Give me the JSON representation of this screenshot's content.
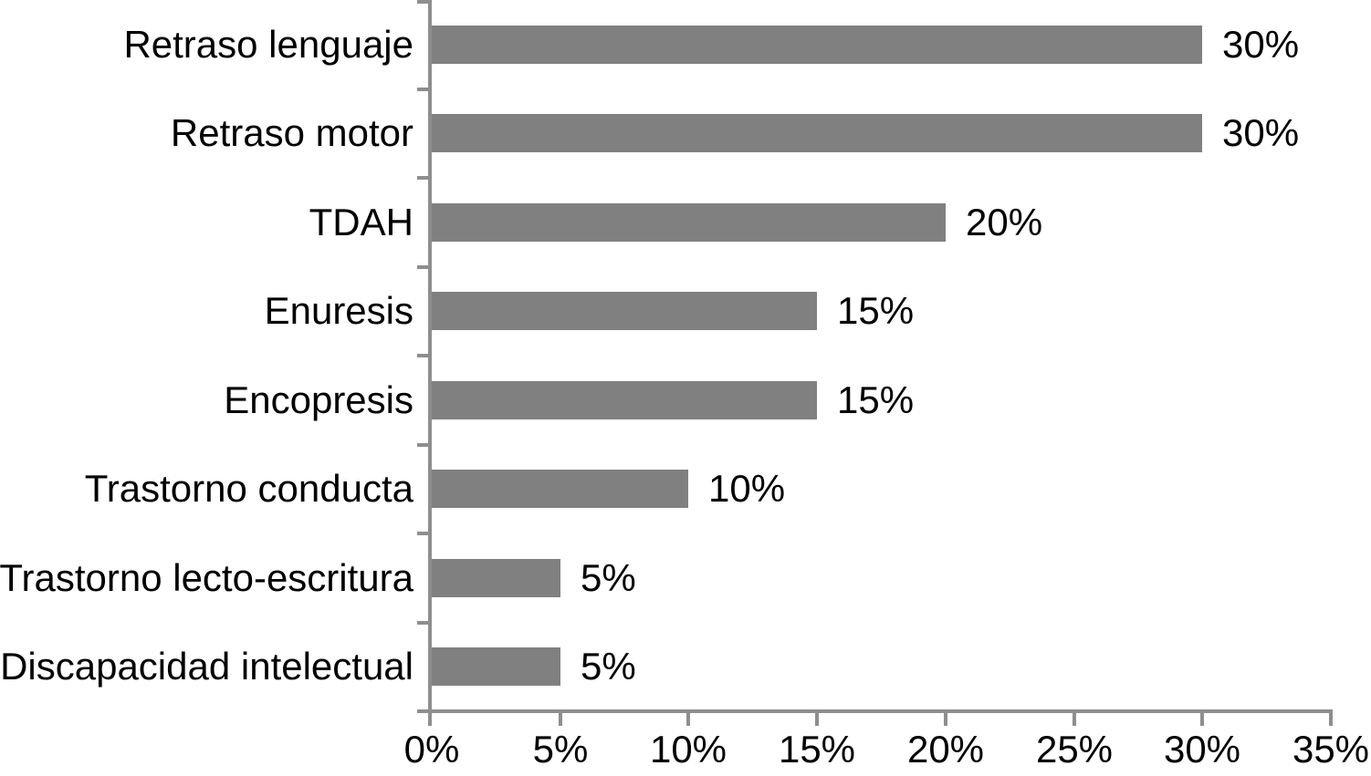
{
  "chart_data": {
    "type": "bar",
    "orientation": "horizontal",
    "title": "",
    "xlabel": "",
    "ylabel": "",
    "categories": [
      "Retraso lenguaje",
      "Retraso motor",
      "TDAH",
      "Enuresis",
      "Encopresis",
      "Trastorno conducta",
      "Trastorno lecto-escritura",
      "Discapacidad intelectual"
    ],
    "values": [
      30,
      30,
      20,
      15,
      15,
      10,
      5,
      5
    ],
    "value_labels": [
      "30%",
      "30%",
      "20%",
      "15%",
      "15%",
      "10%",
      "5%",
      "5%"
    ],
    "x_ticks": [
      0,
      5,
      10,
      15,
      20,
      25,
      30,
      35
    ],
    "x_tick_labels": [
      "0%",
      "5%",
      "10%",
      "15%",
      "20%",
      "25%",
      "30%",
      "35%"
    ],
    "xlim": [
      0,
      35
    ],
    "grid": false,
    "legend": false,
    "bar_color": "#808080",
    "axis_color": "#8E8E8E",
    "text_color": "#000000",
    "background_color": "#FFFFFF"
  }
}
